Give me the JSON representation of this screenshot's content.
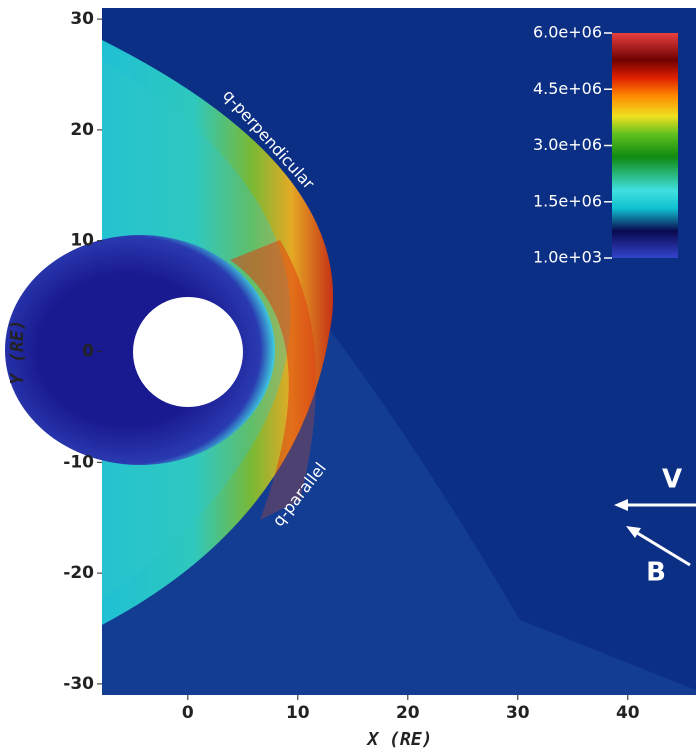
{
  "chart_data": {
    "type": "field",
    "xlabel": "X (RE)",
    "ylabel": "Y (RE)",
    "xlim": [
      -7.8,
      46.2
    ],
    "ylim": [
      -31,
      31
    ],
    "xticks": [
      0,
      10,
      20,
      30,
      40
    ],
    "yticks": [
      -30,
      -20,
      -10,
      0,
      10,
      20,
      30
    ],
    "colorbar": {
      "clim": [
        1000,
        6000000
      ],
      "ticks": [
        {
          "value": 6000000,
          "label": "6.0e+06"
        },
        {
          "value": 4500000,
          "label": "4.5e+06"
        },
        {
          "value": 3000000,
          "label": "3.0e+06"
        },
        {
          "value": 1500000,
          "label": "1.5e+06"
        },
        {
          "value": 1000,
          "label": "1.0e+03"
        }
      ]
    },
    "annotations": [
      "q-perpendicular",
      "q-parallel",
      "V",
      "B"
    ]
  }
}
